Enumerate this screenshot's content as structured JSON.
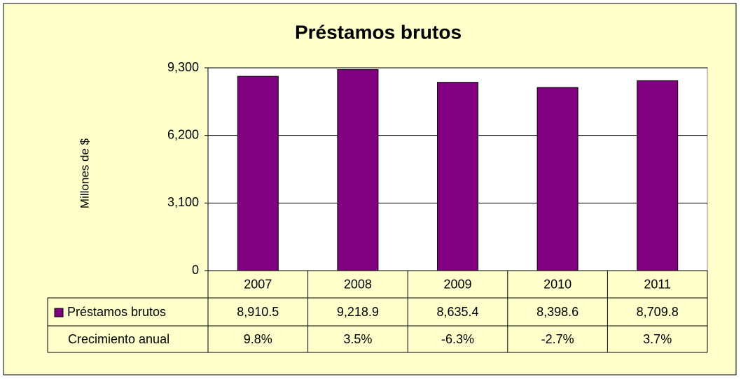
{
  "chart_data": {
    "type": "bar",
    "title": "Préstamos brutos",
    "y_label": "Millones de $",
    "categories": [
      "2007",
      "2008",
      "2009",
      "2010",
      "2011"
    ],
    "series": [
      {
        "name": "Préstamos brutos",
        "color": "#800080",
        "values": [
          8910.5,
          9218.9,
          8635.4,
          8398.6,
          8709.8
        ],
        "value_labels": [
          "8,910.5",
          "9,218.9",
          "8,635.4",
          "8,398.6",
          "8,709.8"
        ]
      },
      {
        "name": "Crecimiento anual",
        "values": [
          9.8,
          3.5,
          -6.3,
          -2.7,
          3.7
        ],
        "value_labels": [
          "9.8%",
          "3.5%",
          "-6.3%",
          "-2.7%",
          "3.7%"
        ]
      }
    ],
    "ylim": [
      0,
      9300
    ],
    "yticks": [
      0,
      {
        "value": 3100,
        "label": "3,100"
      },
      {
        "value": 6200,
        "label": "6,200"
      },
      {
        "value": 9300,
        "label": "9,300"
      }
    ],
    "grid": true
  }
}
